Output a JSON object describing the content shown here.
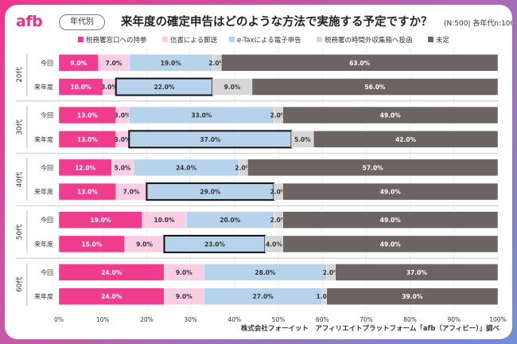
{
  "header": {
    "logo": "afb",
    "tag": "年代別",
    "title": "来年度の確定申告はどのような方法で実施する予定ですか？",
    "subtitle": "(N:500| 各年代n:100)"
  },
  "credit": "株式会社フォーイット　アフィリエイトプラットフォーム「afb（アフィビー）」調べ",
  "chart_data": {
    "type": "bar",
    "orientation": "horizontal",
    "stacked": true,
    "xlim": [
      0,
      100
    ],
    "x_ticks": [
      "0%",
      "10%",
      "20%",
      "30%",
      "40%",
      "50%",
      "60%",
      "70%",
      "80%",
      "90%",
      "100%"
    ],
    "series_names": [
      "税務署窓口への持参",
      "信書による郵送",
      "e-Taxによる電子申告",
      "税務署の時間外収集箱へ投函",
      "未定"
    ],
    "colors": [
      "#f03c8c",
      "#f9cde3",
      "#b7d3ec",
      "#d6d6d6",
      "#6b6463"
    ],
    "label_colors": [
      "#ffffff",
      "#333333",
      "#333333",
      "#333333",
      "#ffffff"
    ],
    "groups": [
      {
        "name": "20代",
        "rows": [
          {
            "label": "今回",
            "values": [
              9.0,
              7.0,
              19.0,
              2.0,
              63.0
            ],
            "highlight": false
          },
          {
            "label": "来年度",
            "values": [
              10.0,
              3.0,
              22.0,
              9.0,
              56.0
            ],
            "highlight": true
          }
        ]
      },
      {
        "name": "30代",
        "rows": [
          {
            "label": "今回",
            "values": [
              13.0,
              3.0,
              33.0,
              2.0,
              49.0
            ],
            "highlight": false
          },
          {
            "label": "来年度",
            "values": [
              13.0,
              3.0,
              37.0,
              5.0,
              42.0
            ],
            "highlight": true
          }
        ]
      },
      {
        "name": "40代",
        "rows": [
          {
            "label": "今回",
            "values": [
              12.0,
              5.0,
              24.0,
              2.0,
              57.0
            ],
            "highlight": false
          },
          {
            "label": "来年度",
            "values": [
              13.0,
              7.0,
              29.0,
              2.0,
              49.0
            ],
            "highlight": true
          }
        ]
      },
      {
        "name": "50代",
        "rows": [
          {
            "label": "今回",
            "values": [
              19.0,
              10.0,
              20.0,
              2.0,
              49.0
            ],
            "highlight": false
          },
          {
            "label": "来年度",
            "values": [
              15.0,
              9.0,
              23.0,
              4.0,
              49.0
            ],
            "highlight": true
          }
        ]
      },
      {
        "name": "60代",
        "rows": [
          {
            "label": "今回",
            "values": [
              24.0,
              9.0,
              28.0,
              2.0,
              37.0
            ],
            "highlight": false
          },
          {
            "label": "来年度",
            "values": [
              24.0,
              9.0,
              27.0,
              1.0,
              39.0
            ],
            "highlight": false
          }
        ]
      }
    ]
  }
}
